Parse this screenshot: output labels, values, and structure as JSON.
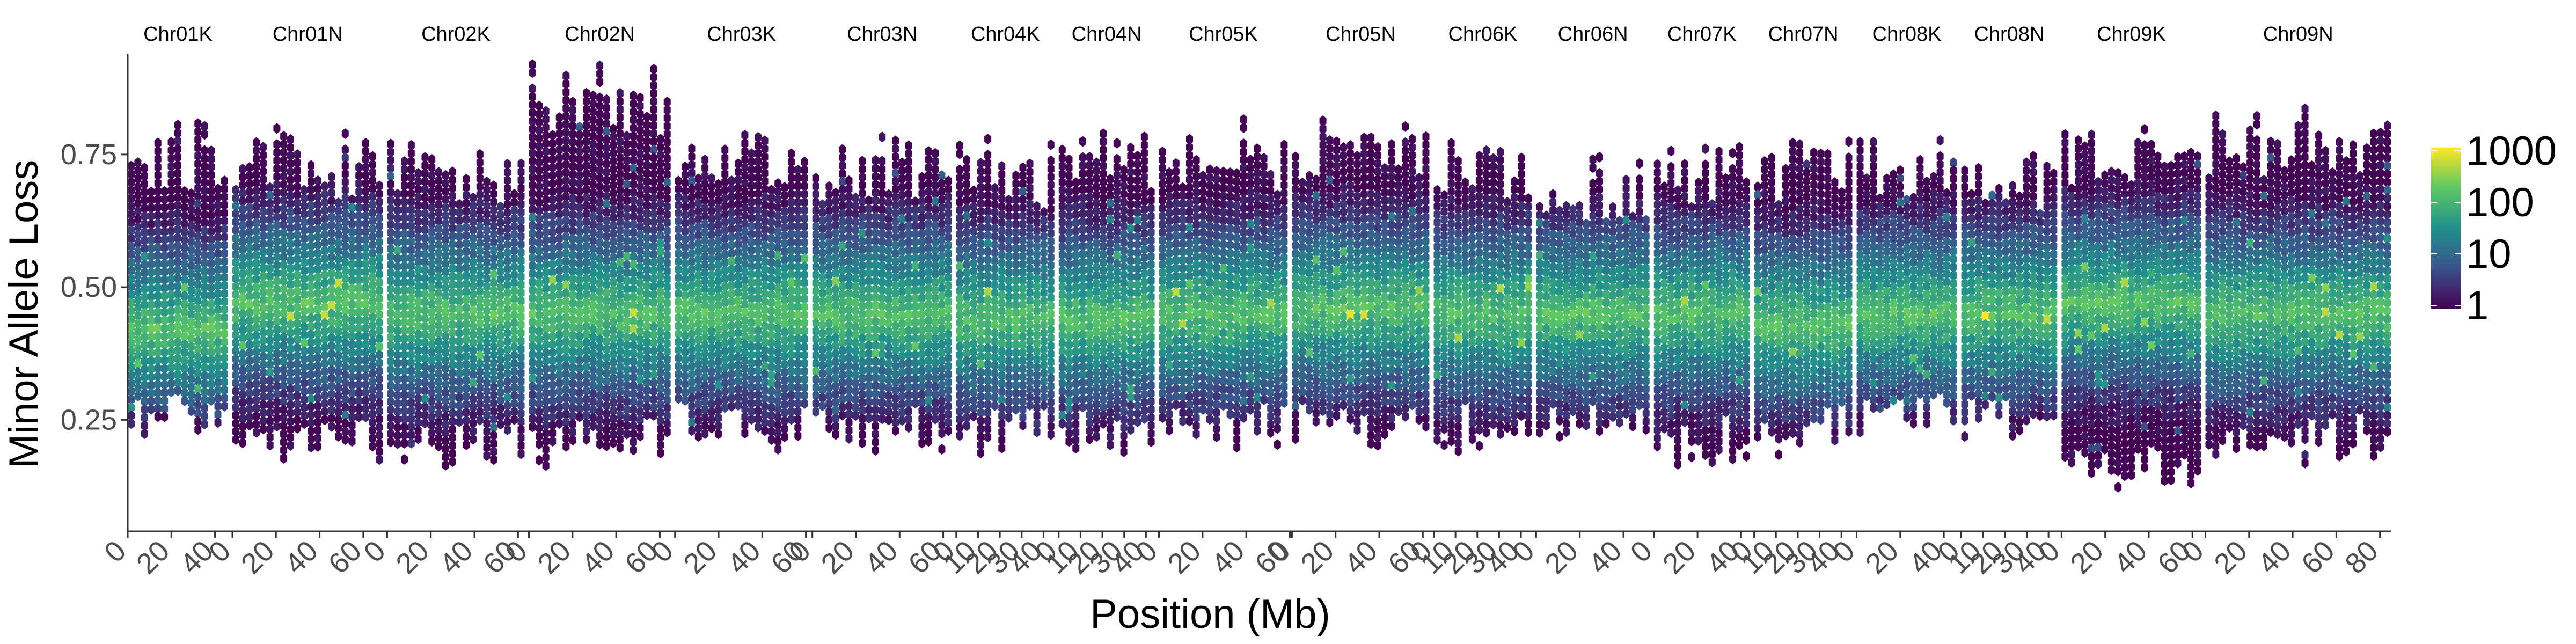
{
  "chart_data": {
    "type": "heatmap",
    "subtype": "hexbin-faceted",
    "xlabel": "Position (Mb)",
    "ylabel": "Minor Allele Loss",
    "ylim": [
      0.04,
      0.94
    ],
    "y_ticks": [
      0.25,
      0.5,
      0.75
    ],
    "y_tick_labels": [
      "0.25",
      "0.50",
      "0.75"
    ],
    "grid": false,
    "legend": {
      "placement": "right",
      "scale": "log10",
      "breaks": [
        1,
        10,
        100,
        1000
      ],
      "labels": [
        "1",
        "10",
        "100",
        "1000"
      ],
      "colors": [
        "#440154",
        "#3b528b",
        "#21908c",
        "#5dc863",
        "#fde725"
      ]
    },
    "facets": [
      {
        "label": "Chr01K",
        "length_mb": 46,
        "ticks": [
          0,
          20,
          40
        ],
        "low": 0.2,
        "high": 0.82,
        "peak": 0.42,
        "hot": 1.5
      },
      {
        "label": "Chr01N",
        "length_mb": 69,
        "ticks": [
          0,
          20,
          40,
          60
        ],
        "low": 0.16,
        "high": 0.8,
        "peak": 0.47,
        "hot": 2.0
      },
      {
        "label": "Chr02K",
        "length_mb": 63,
        "ticks": [
          0,
          20,
          40,
          60
        ],
        "low": 0.16,
        "high": 0.79,
        "peak": 0.45,
        "hot": 1.6
      },
      {
        "label": "Chr02N",
        "length_mb": 65,
        "ticks": [
          0,
          20,
          40,
          60
        ],
        "low": 0.16,
        "high": 0.92,
        "peak": 0.45,
        "hot": 1.8
      },
      {
        "label": "Chr03K",
        "length_mb": 61,
        "ticks": [
          0,
          20,
          40,
          60
        ],
        "low": 0.18,
        "high": 0.82,
        "peak": 0.45,
        "hot": 1.6
      },
      {
        "label": "Chr03N",
        "length_mb": 64,
        "ticks": [
          0,
          20,
          40,
          60
        ],
        "low": 0.18,
        "high": 0.8,
        "peak": 0.45,
        "hot": 1.7
      },
      {
        "label": "Chr04K",
        "length_mb": 45,
        "ticks": [
          0,
          10,
          20,
          30,
          40
        ],
        "low": 0.18,
        "high": 0.78,
        "peak": 0.44,
        "hot": 1.4
      },
      {
        "label": "Chr04N",
        "length_mb": 44,
        "ticks": [
          0,
          10,
          20,
          30,
          40
        ],
        "low": 0.16,
        "high": 0.8,
        "peak": 0.44,
        "hot": 1.3
      },
      {
        "label": "Chr05K",
        "length_mb": 59,
        "ticks": [
          0,
          20,
          40,
          60
        ],
        "low": 0.18,
        "high": 0.82,
        "peak": 0.45,
        "hot": 1.5
      },
      {
        "label": "Chr05N",
        "length_mb": 63,
        "ticks": [
          0,
          20,
          40,
          60
        ],
        "low": 0.18,
        "high": 0.82,
        "peak": 0.46,
        "hot": 1.6
      },
      {
        "label": "Chr06K",
        "length_mb": 45,
        "ticks": [
          0,
          10,
          20,
          30,
          40
        ],
        "low": 0.18,
        "high": 0.8,
        "peak": 0.45,
        "hot": 1.3
      },
      {
        "label": "Chr06N",
        "length_mb": 52,
        "ticks": [
          0,
          20,
          40
        ],
        "low": 0.2,
        "high": 0.76,
        "peak": 0.45,
        "hot": 1.3
      },
      {
        "label": "Chr07K",
        "length_mb": 44,
        "ticks": [
          0,
          20,
          40
        ],
        "low": 0.16,
        "high": 0.78,
        "peak": 0.45,
        "hot": 1.3
      },
      {
        "label": "Chr07N",
        "length_mb": 45,
        "ticks": [
          0,
          10,
          20,
          30,
          40
        ],
        "low": 0.18,
        "high": 0.8,
        "peak": 0.43,
        "hot": 1.4
      },
      {
        "label": "Chr08K",
        "length_mb": 46,
        "ticks": [
          0,
          20,
          40
        ],
        "low": 0.2,
        "high": 0.8,
        "peak": 0.45,
        "hot": 1.3
      },
      {
        "label": "Chr08N",
        "length_mb": 44,
        "ticks": [
          0,
          10,
          20,
          30,
          40
        ],
        "low": 0.2,
        "high": 0.78,
        "peak": 0.45,
        "hot": 1.2
      },
      {
        "label": "Chr09K",
        "length_mb": 64,
        "ticks": [
          0,
          20,
          40,
          60
        ],
        "low": 0.1,
        "high": 0.82,
        "peak": 0.47,
        "hot": 1.8
      },
      {
        "label": "Chr09N",
        "length_mb": 85,
        "ticks": [
          0,
          20,
          40,
          60,
          80
        ],
        "low": 0.16,
        "high": 0.84,
        "peak": 0.45,
        "hot": 1.9
      }
    ]
  }
}
